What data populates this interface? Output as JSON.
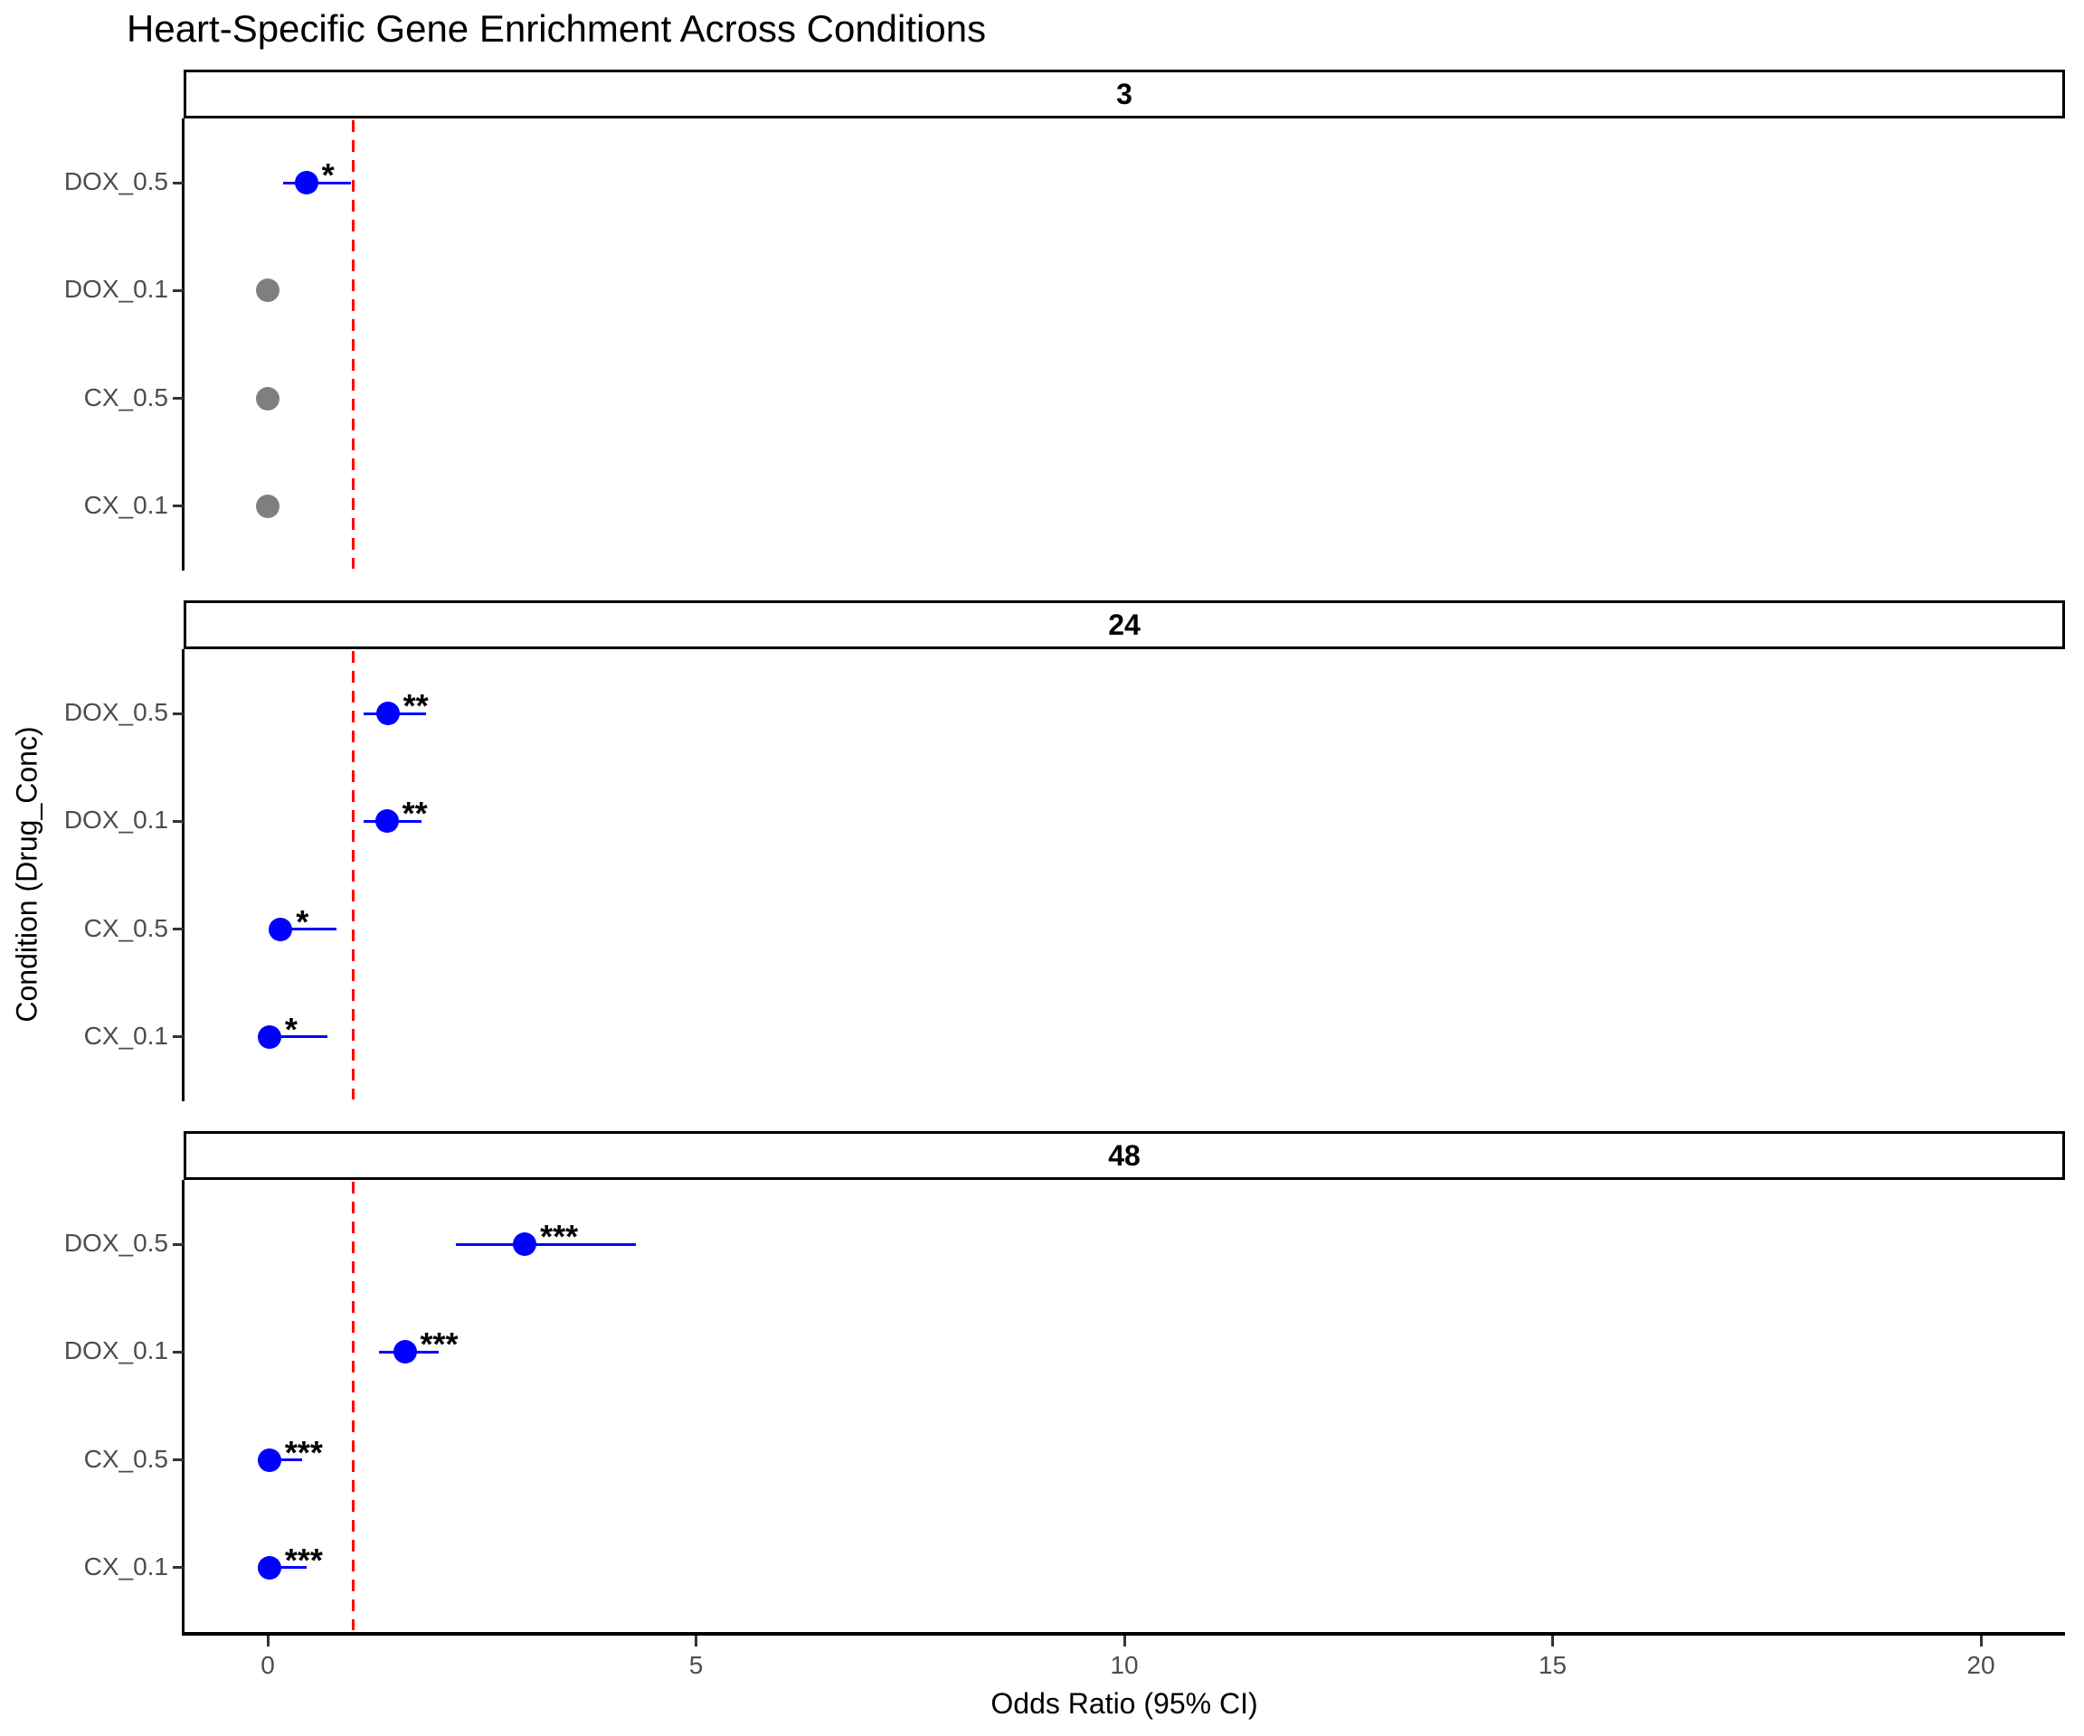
{
  "chart_data": {
    "type": "scatter",
    "subtype": "faceted-forest-plot",
    "title": "Heart-Specific Gene Enrichment Across Conditions",
    "xlabel": "Odds Ratio (95% CI)",
    "ylabel": "Condition (Drug_Conc)",
    "facet_labels": [
      "3",
      "24",
      "48"
    ],
    "categories_top_to_bottom": [
      "DOX_0.5",
      "DOX_0.1",
      "CX_0.5",
      "CX_0.1"
    ],
    "x_ticks": [
      0,
      5,
      10,
      15,
      20
    ],
    "xlim": [
      -1,
      21
    ],
    "grid": false,
    "legend": "none",
    "reference_line_x": 1,
    "colors": {
      "significant_point": "#0000ff",
      "nonsignificant_point": "#7f7f7f",
      "reference_line": "#ff0000",
      "tick_text": "#4d4d4d",
      "axis_line": "#000000"
    },
    "panels": [
      {
        "label": "3",
        "points": [
          {
            "condition": "DOX_0.5",
            "or": 0.45,
            "ci_low": 0.18,
            "ci_high": 0.97,
            "sig": "*",
            "color": "#0000ff"
          },
          {
            "condition": "DOX_0.1",
            "or": 0.0,
            "ci_low": null,
            "ci_high": null,
            "sig": "",
            "color": "#7f7f7f"
          },
          {
            "condition": "CX_0.5",
            "or": 0.0,
            "ci_low": null,
            "ci_high": null,
            "sig": "",
            "color": "#7f7f7f"
          },
          {
            "condition": "CX_0.1",
            "or": 0.0,
            "ci_low": null,
            "ci_high": null,
            "sig": "",
            "color": "#7f7f7f"
          }
        ]
      },
      {
        "label": "24",
        "points": [
          {
            "condition": "DOX_0.5",
            "or": 1.4,
            "ci_low": 1.12,
            "ci_high": 1.85,
            "sig": "**",
            "color": "#0000ff"
          },
          {
            "condition": "DOX_0.1",
            "or": 1.39,
            "ci_low": 1.12,
            "ci_high": 1.8,
            "sig": "**",
            "color": "#0000ff"
          },
          {
            "condition": "CX_0.5",
            "or": 0.15,
            "ci_low": 0.03,
            "ci_high": 0.8,
            "sig": "*",
            "color": "#0000ff"
          },
          {
            "condition": "CX_0.1",
            "or": 0.02,
            "ci_low": 0.0,
            "ci_high": 0.7,
            "sig": "*",
            "color": "#0000ff"
          }
        ]
      },
      {
        "label": "48",
        "points": [
          {
            "condition": "DOX_0.5",
            "or": 3.0,
            "ci_low": 2.2,
            "ci_high": 4.3,
            "sig": "***",
            "color": "#0000ff"
          },
          {
            "condition": "DOX_0.1",
            "or": 1.6,
            "ci_low": 1.3,
            "ci_high": 2.0,
            "sig": "***",
            "color": "#0000ff"
          },
          {
            "condition": "CX_0.5",
            "or": 0.02,
            "ci_low": 0.0,
            "ci_high": 0.4,
            "sig": "***",
            "color": "#0000ff"
          },
          {
            "condition": "CX_0.1",
            "or": 0.02,
            "ci_low": 0.0,
            "ci_high": 0.45,
            "sig": "***",
            "color": "#0000ff"
          }
        ]
      }
    ]
  }
}
